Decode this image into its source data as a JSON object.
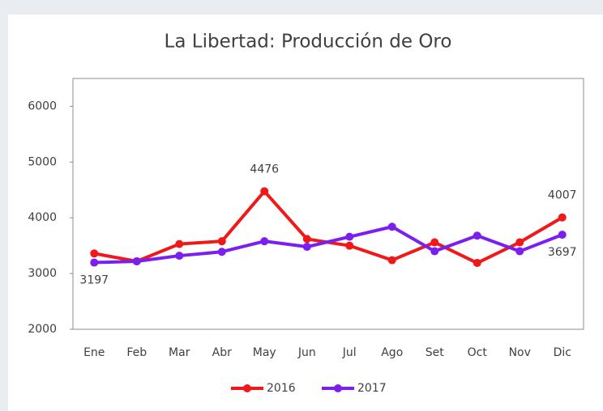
{
  "chart_data": {
    "type": "line",
    "title": "La Libertad: Producción de Oro",
    "categories": [
      "Ene",
      "Feb",
      "Mar",
      "Abr",
      "May",
      "Jun",
      "Jul",
      "Ago",
      "Set",
      "Oct",
      "Nov",
      "Dic"
    ],
    "series": [
      {
        "name": "2016",
        "color": "#f01818",
        "values": [
          3360,
          3220,
          3530,
          3580,
          4476,
          3620,
          3500,
          3240,
          3560,
          3190,
          3560,
          4007
        ],
        "label_indices": [
          4,
          11
        ],
        "label_position": "above"
      },
      {
        "name": "2017",
        "color": "#7a1ff0",
        "values": [
          3197,
          3220,
          3320,
          3390,
          3580,
          3480,
          3660,
          3840,
          3400,
          3680,
          3400,
          3697
        ],
        "label_indices": [
          0,
          11
        ],
        "label_position": "below"
      }
    ],
    "ylim": [
      2000,
      6500
    ],
    "yticks": [
      2000,
      3000,
      4000,
      5000,
      6000
    ],
    "grid": false,
    "legend": "bottom"
  }
}
